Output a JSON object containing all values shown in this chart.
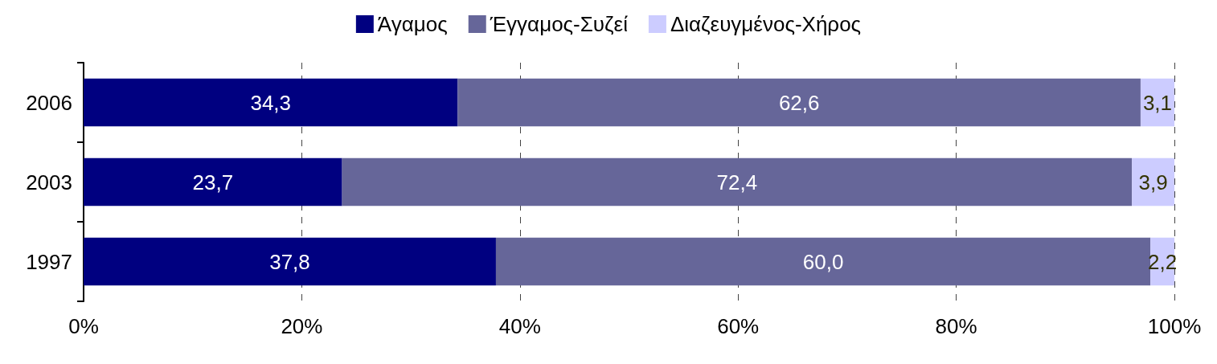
{
  "chart_data": {
    "type": "bar",
    "orientation": "horizontal",
    "stacked": true,
    "categories": [
      "2006",
      "2003",
      "1997"
    ],
    "series": [
      {
        "name": "Άγαμος",
        "color": "#000080",
        "values": [
          34.3,
          23.7,
          37.8
        ],
        "value_labels": [
          "34,3",
          "23,7",
          "37,8"
        ]
      },
      {
        "name": "Έγγαμος-Συζεί",
        "color": "#666699",
        "values": [
          62.6,
          72.4,
          60.0
        ],
        "value_labels": [
          "62,6",
          "72,4",
          "60,0"
        ]
      },
      {
        "name": "Διαζευγμένος-Χήρος",
        "color": "#ccccff",
        "values": [
          3.1,
          3.9,
          2.2
        ],
        "value_labels": [
          "3,1",
          "3,9",
          "2,2"
        ]
      }
    ],
    "xlim": [
      0,
      100
    ],
    "xticks": [
      {
        "value": 0,
        "label": "0%"
      },
      {
        "value": 20,
        "label": "20%"
      },
      {
        "value": 40,
        "label": "40%"
      },
      {
        "value": 60,
        "label": "60%"
      },
      {
        "value": 80,
        "label": "80%"
      },
      {
        "value": 100,
        "label": "100%"
      }
    ],
    "grid": "x",
    "legend": "top"
  }
}
